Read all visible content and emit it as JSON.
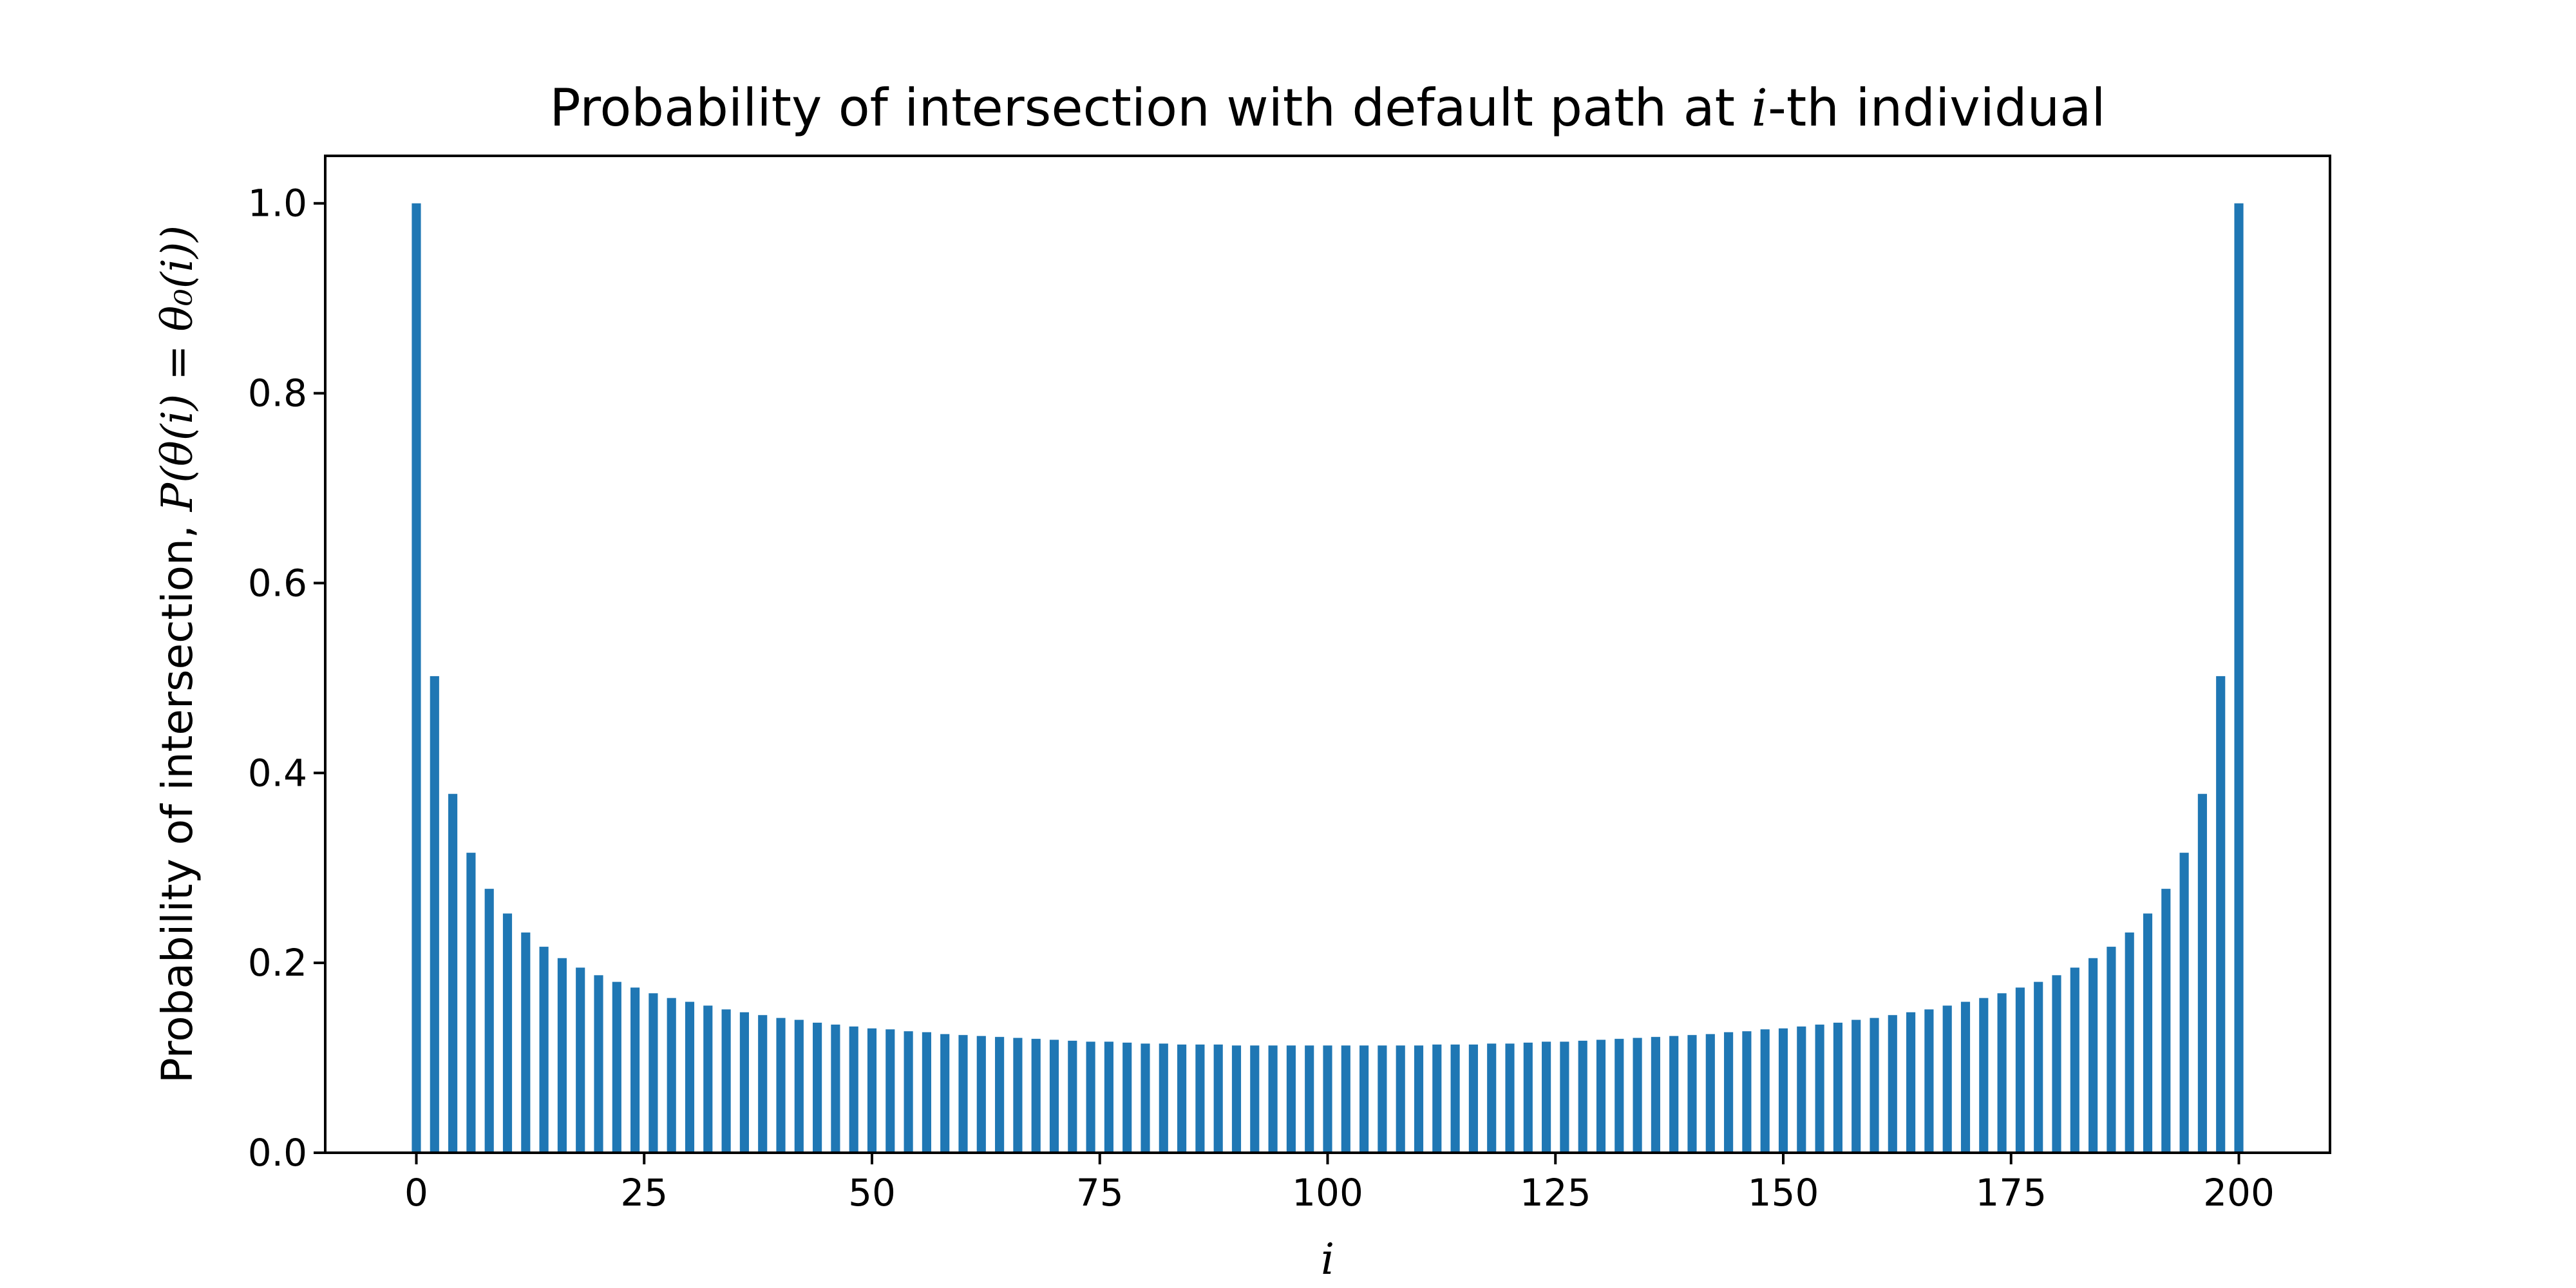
{
  "chart_data": {
    "type": "bar",
    "title": {
      "prefix": "Probability of intersection with default path at ",
      "math": "i",
      "suffix": "-th individual"
    },
    "xlabel": "i",
    "ylabel": {
      "text": "Probability of intersection, ",
      "math": "P(θ(i) = θ₀(i))"
    },
    "x": [
      0,
      2,
      4,
      6,
      8,
      10,
      12,
      14,
      16,
      18,
      20,
      22,
      24,
      26,
      28,
      30,
      32,
      34,
      36,
      38,
      40,
      42,
      44,
      46,
      48,
      50,
      52,
      54,
      56,
      58,
      60,
      62,
      64,
      66,
      68,
      70,
      72,
      74,
      76,
      78,
      80,
      82,
      84,
      86,
      88,
      90,
      92,
      94,
      96,
      98,
      100,
      102,
      104,
      106,
      108,
      110,
      112,
      114,
      116,
      118,
      120,
      122,
      124,
      126,
      128,
      130,
      132,
      134,
      136,
      138,
      140,
      142,
      144,
      146,
      148,
      150,
      152,
      154,
      156,
      158,
      160,
      162,
      164,
      166,
      168,
      170,
      172,
      174,
      176,
      178,
      180,
      182,
      184,
      186,
      188,
      190,
      192,
      194,
      196,
      198,
      200
    ],
    "values": [
      1.0,
      0.502,
      0.378,
      0.316,
      0.278,
      0.252,
      0.232,
      0.217,
      0.205,
      0.195,
      0.187,
      0.18,
      0.174,
      0.168,
      0.163,
      0.159,
      0.155,
      0.151,
      0.148,
      0.145,
      0.142,
      0.14,
      0.137,
      0.135,
      0.133,
      0.131,
      0.13,
      0.128,
      0.127,
      0.125,
      0.124,
      0.123,
      0.122,
      0.121,
      0.12,
      0.119,
      0.118,
      0.117,
      0.117,
      0.116,
      0.115,
      0.115,
      0.114,
      0.114,
      0.114,
      0.113,
      0.113,
      0.113,
      0.113,
      0.113,
      0.113,
      0.113,
      0.113,
      0.113,
      0.113,
      0.113,
      0.114,
      0.114,
      0.114,
      0.115,
      0.115,
      0.116,
      0.117,
      0.117,
      0.118,
      0.119,
      0.12,
      0.121,
      0.122,
      0.123,
      0.124,
      0.125,
      0.127,
      0.128,
      0.13,
      0.131,
      0.133,
      0.135,
      0.137,
      0.14,
      0.142,
      0.145,
      0.148,
      0.151,
      0.155,
      0.159,
      0.163,
      0.168,
      0.174,
      0.18,
      0.187,
      0.195,
      0.205,
      0.217,
      0.232,
      0.252,
      0.278,
      0.316,
      0.378,
      0.502,
      1.0
    ],
    "xlim": [
      -10,
      210
    ],
    "ylim": [
      0,
      1.05
    ],
    "xticks": [
      0,
      25,
      50,
      75,
      100,
      125,
      150,
      175,
      200
    ],
    "xtick_labels": [
      "0",
      "25",
      "50",
      "75",
      "100",
      "125",
      "150",
      "175",
      "200"
    ],
    "yticks": [
      0.0,
      0.2,
      0.4,
      0.6,
      0.8,
      1.0
    ],
    "ytick_labels": [
      "0.0",
      "0.2",
      "0.4",
      "0.6",
      "0.8",
      "1.0"
    ],
    "bar_width": 1.0,
    "bar_color": "#1f77b4",
    "grid": false
  }
}
